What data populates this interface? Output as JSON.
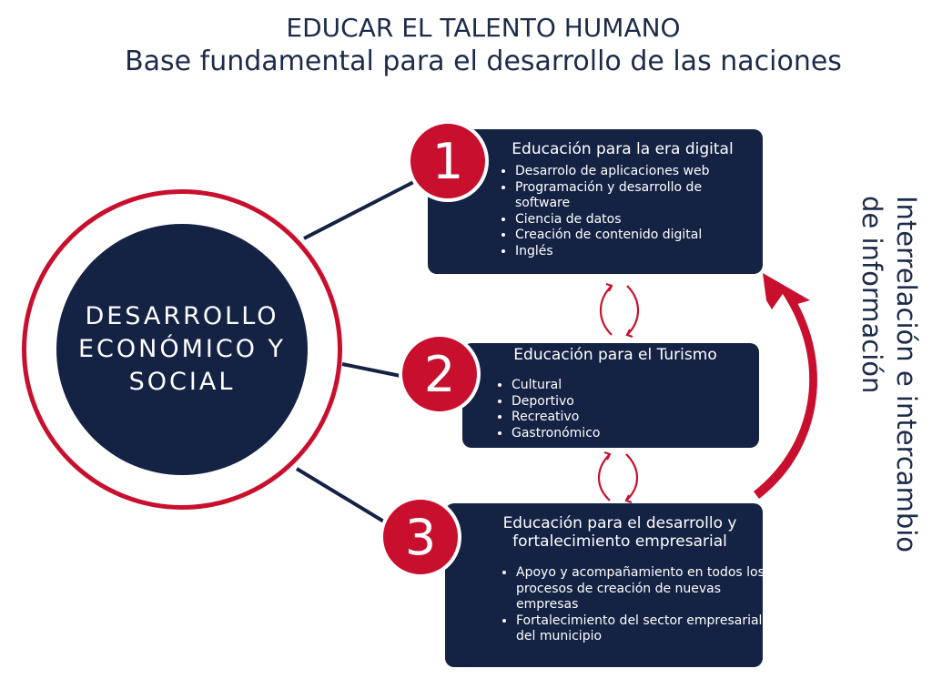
{
  "header": {
    "title": "EDUCAR EL TALENTO HUMANO",
    "subtitle": "Base fundamental para el desarrollo de las naciones"
  },
  "center": {
    "lines": [
      "DESARROLLO",
      "ECONÓMICO Y",
      "SOCIAL"
    ]
  },
  "items": [
    {
      "number": "1",
      "title": "Educación para la era digital",
      "bullets": [
        "Desarrolo de aplicaciones web",
        "Programación y desarrollo de software",
        "Ciencia de datos",
        "Creación de contenido digital",
        "Inglés"
      ]
    },
    {
      "number": "2",
      "title": "Educación para el Turismo",
      "bullets": [
        "Cultural",
        "Deportivo",
        "Recreativo",
        "Gastronómico"
      ]
    },
    {
      "number": "3",
      "title": "Educación para el desarrollo y fortalecimiento empresarial",
      "bullets": [
        "Apoyo y acompañamiento en todos los procesos de creación de nuevas empresas",
        "Fortalecimiento del sector empresarial del municipio"
      ]
    }
  ],
  "side_label": "Interrelación e intercambio de información",
  "colors": {
    "navy": "#142244",
    "red": "#c8102e",
    "text": "#1d2b4a"
  }
}
